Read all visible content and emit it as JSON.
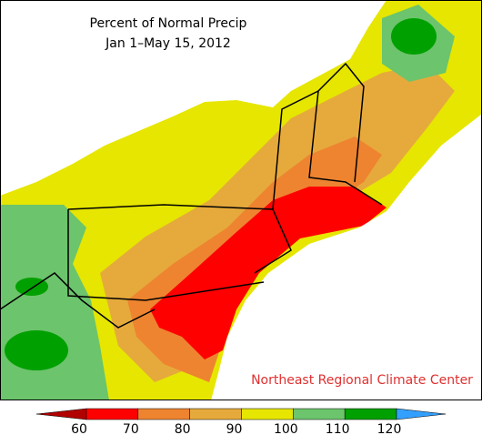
{
  "title": "Percent of Normal Precip",
  "subtitle": "Jan 1–May 15, 2012",
  "credit": "Northeast Regional Climate Center",
  "legend": {
    "ticks": [
      60,
      70,
      80,
      90,
      100,
      110,
      120
    ],
    "colors": [
      "#b00000",
      "#ff0000",
      "#ee8430",
      "#e6aa3c",
      "#e6e600",
      "#6cc46c",
      "#00a000",
      "#33a0ff"
    ]
  }
}
